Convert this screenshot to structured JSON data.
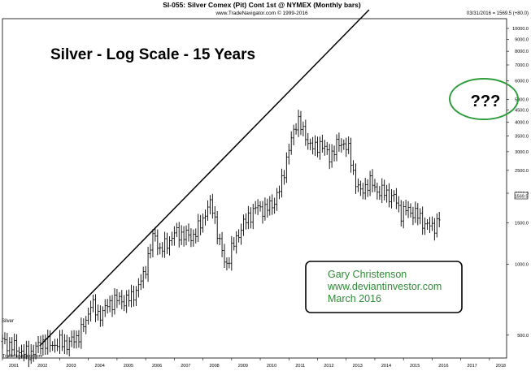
{
  "chart_data": {
    "type": "ohlc",
    "header_title": "SI-055:  Silver Comex (Pit) Cont 1st @ NYMEX  (Monthly bars)",
    "header_copyright": "www.TradeNavigator.com © 1999-2016",
    "readout": "03/31/2016 = 1569.5 (+80.0)",
    "title": "Silver - Log Scale - 15 Years",
    "annotation": "???",
    "info_box": [
      "Gary Christenson",
      "www.deviantinvestor.com",
      "March 2016"
    ],
    "symbol_label": "Silver",
    "footer": "TradeNavigator.com",
    "last_price_label": "1569.5",
    "y_scale": "log",
    "y_ticks": [
      500,
      1000,
      1500,
      2000,
      2500,
      3000,
      3500,
      4000,
      4500,
      5000,
      6000,
      7000,
      8000,
      9000,
      10000
    ],
    "y_tick_labels": [
      "500.0",
      "1000.0",
      "1500.0",
      "2000.0",
      "2500.0",
      "3000.0",
      "3500.0",
      "4000.0",
      "4500.0",
      "5000.0",
      "6000.0",
      "7000.0",
      "8000.0",
      "9000.0",
      "10000.0"
    ],
    "x_ticks": [
      "2001",
      "2002",
      "2003",
      "2004",
      "2005",
      "2006",
      "2007",
      "2008",
      "2009",
      "2010",
      "2011",
      "2012",
      "2013",
      "2014",
      "2015",
      "2016",
      "2017",
      "2018"
    ],
    "x_range": [
      2001,
      2018.6
    ],
    "trendline": {
      "from": [
        2002.3,
        450
      ],
      "to": [
        2013.8,
        12000
      ]
    },
    "anchors": [
      [
        2001.0,
        470
      ],
      [
        2001.4,
        445
      ],
      [
        2001.7,
        425
      ],
      [
        2001.9,
        415
      ],
      [
        2002.2,
        440
      ],
      [
        2002.4,
        470
      ],
      [
        2002.7,
        455
      ],
      [
        2003.0,
        465
      ],
      [
        2003.3,
        460
      ],
      [
        2003.6,
        490
      ],
      [
        2003.9,
        560
      ],
      [
        2004.1,
        700
      ],
      [
        2004.3,
        600
      ],
      [
        2004.6,
        650
      ],
      [
        2004.9,
        710
      ],
      [
        2005.2,
        700
      ],
      [
        2005.5,
        720
      ],
      [
        2005.9,
        870
      ],
      [
        2006.1,
        1100
      ],
      [
        2006.3,
        1350
      ],
      [
        2006.5,
        1150
      ],
      [
        2006.7,
        1200
      ],
      [
        2007.0,
        1350
      ],
      [
        2007.3,
        1340
      ],
      [
        2007.6,
        1300
      ],
      [
        2007.9,
        1450
      ],
      [
        2008.2,
        1800
      ],
      [
        2008.35,
        1700
      ],
      [
        2008.6,
        1200
      ],
      [
        2008.8,
        980
      ],
      [
        2009.0,
        1150
      ],
      [
        2009.3,
        1400
      ],
      [
        2009.6,
        1600
      ],
      [
        2009.9,
        1750
      ],
      [
        2010.2,
        1700
      ],
      [
        2010.5,
        1850
      ],
      [
        2010.7,
        2100
      ],
      [
        2010.9,
        2750
      ],
      [
        2011.1,
        3400
      ],
      [
        2011.3,
        4200
      ],
      [
        2011.5,
        3600
      ],
      [
        2011.7,
        3300
      ],
      [
        2011.9,
        3050
      ],
      [
        2012.1,
        3300
      ],
      [
        2012.4,
        2850
      ],
      [
        2012.7,
        3200
      ],
      [
        2012.9,
        3300
      ],
      [
        2013.1,
        3000
      ],
      [
        2013.3,
        2300
      ],
      [
        2013.5,
        2000
      ],
      [
        2013.8,
        2250
      ],
      [
        2014.1,
        2050
      ],
      [
        2014.4,
        2000
      ],
      [
        2014.7,
        1900
      ],
      [
        2014.9,
        1650
      ],
      [
        2015.1,
        1700
      ],
      [
        2015.4,
        1650
      ],
      [
        2015.7,
        1500
      ],
      [
        2015.9,
        1450
      ],
      [
        2016.0,
        1430
      ],
      [
        2016.15,
        1500
      ],
      [
        2016.25,
        1570
      ]
    ]
  }
}
